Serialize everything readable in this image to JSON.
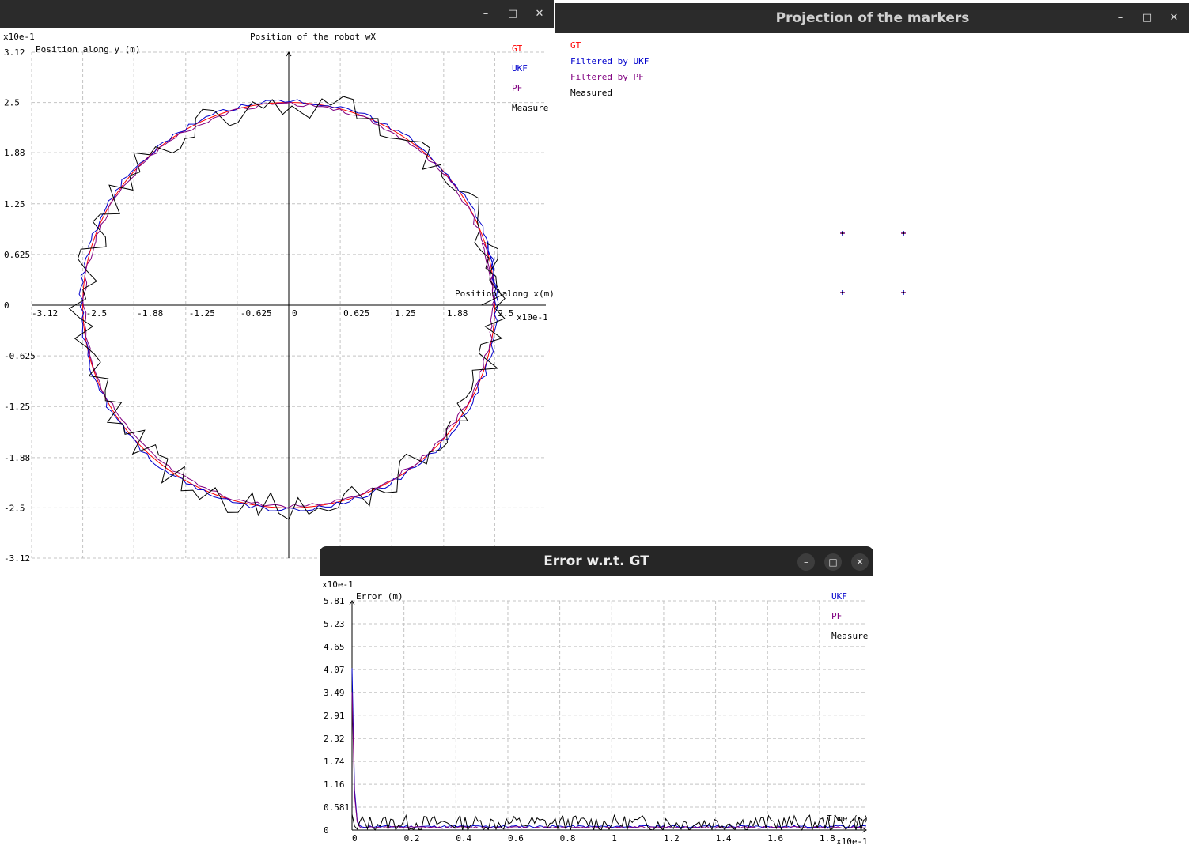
{
  "windows": {
    "position": {
      "title": "",
      "controls": {
        "minimize": "–",
        "maximize": "□",
        "close": "✕"
      },
      "chart_data": {
        "type": "line",
        "title": "Position of the robot wX",
        "xlabel": "Position along x(m)",
        "ylabel": "Position along y (m)",
        "x_scale_label": "x10e-1",
        "y_scale_label": "x10e-1",
        "xlim": [
          -3.12,
          3.12
        ],
        "ylim": [
          -3.12,
          3.12
        ],
        "xticks": [
          "-3.12",
          "-2.5",
          "-1.88",
          "-1.25",
          "-0.625",
          "0",
          "0.625",
          "1.25",
          "1.88",
          "2.5"
        ],
        "xtick_values": [
          -3.12,
          -2.5,
          -1.88,
          -1.25,
          -0.625,
          0,
          0.625,
          1.25,
          1.88,
          2.5
        ],
        "yticks": [
          "3.12",
          "2.5",
          "1.88",
          "1.25",
          "0.625",
          "0",
          "-0.625",
          "-1.25",
          "-1.88",
          "-2.5",
          "-3.12"
        ],
        "ytick_values": [
          3.12,
          2.5,
          1.88,
          1.25,
          0.625,
          0,
          -0.625,
          -1.25,
          -1.88,
          -2.5,
          -3.12
        ],
        "grid": true,
        "legend_position": "top-right",
        "series": [
          {
            "name": "GT",
            "color": "#ff0000",
            "shape": "circle",
            "radius": 2.5,
            "noise": 0,
            "seed": 1
          },
          {
            "name": "UKF",
            "color": "#0000cc",
            "shape": "circle",
            "radius": 2.52,
            "noise": 0.03,
            "seed": 2
          },
          {
            "name": "PF",
            "color": "#800080",
            "shape": "circle",
            "radius": 2.48,
            "noise": 0.025,
            "seed": 3
          },
          {
            "name": "Measure",
            "color": "#000000",
            "shape": "circle",
            "radius": 2.5,
            "noise": 0.18,
            "seed": 4
          }
        ]
      }
    },
    "projection": {
      "title": "Projection of the markers",
      "controls": {
        "minimize": "–",
        "maximize": "□",
        "close": "✕"
      },
      "legend": [
        {
          "name": "GT",
          "color": "#ff0000"
        },
        {
          "name": "Filtered by UKF",
          "color": "#0000cc"
        },
        {
          "name": "Filtered by PF",
          "color": "#800080"
        },
        {
          "name": "Measured",
          "color": "#000000"
        }
      ],
      "markers_note": "four marker points"
    },
    "error": {
      "title": "Error w.r.t. GT",
      "controls": {
        "minimize": "–",
        "maximize": "□",
        "close": "✕"
      },
      "chart_data": {
        "type": "line",
        "title": "",
        "xlabel": "Time (s)",
        "ylabel": "Error (m)",
        "x_scale_label": "x10e-1",
        "y_scale_label": "x10e-1",
        "xlim": [
          0,
          1.98
        ],
        "ylim": [
          0,
          5.81
        ],
        "xticks": [
          "0",
          "0.2",
          "0.4",
          "0.6",
          "0.8",
          "1",
          "1.2",
          "1.4",
          "1.6",
          "1.8"
        ],
        "xtick_values": [
          0,
          0.2,
          0.4,
          0.6,
          0.8,
          1.0,
          1.2,
          1.4,
          1.6,
          1.8
        ],
        "yticks": [
          "5.81",
          "5.23",
          "4.65",
          "4.07",
          "3.49",
          "2.91",
          "2.32",
          "1.74",
          "1.16",
          "0.581",
          "0"
        ],
        "ytick_values": [
          5.81,
          5.23,
          4.65,
          4.07,
          3.49,
          2.91,
          2.32,
          1.74,
          1.16,
          0.581,
          0
        ],
        "grid": true,
        "legend_position": "top-right",
        "series": [
          {
            "name": "UKF",
            "color": "#0000cc",
            "initial_peak": 4.1,
            "level": 0.08,
            "jitter": 0.06,
            "seed": 11
          },
          {
            "name": "PF",
            "color": "#800080",
            "initial_peak": 3.5,
            "level": 0.06,
            "jitter": 0.05,
            "seed": 12
          },
          {
            "name": "Measure",
            "color": "#000000",
            "initial_peak": 0.4,
            "level": 0.12,
            "jitter": 0.4,
            "seed": 13
          }
        ]
      }
    }
  }
}
